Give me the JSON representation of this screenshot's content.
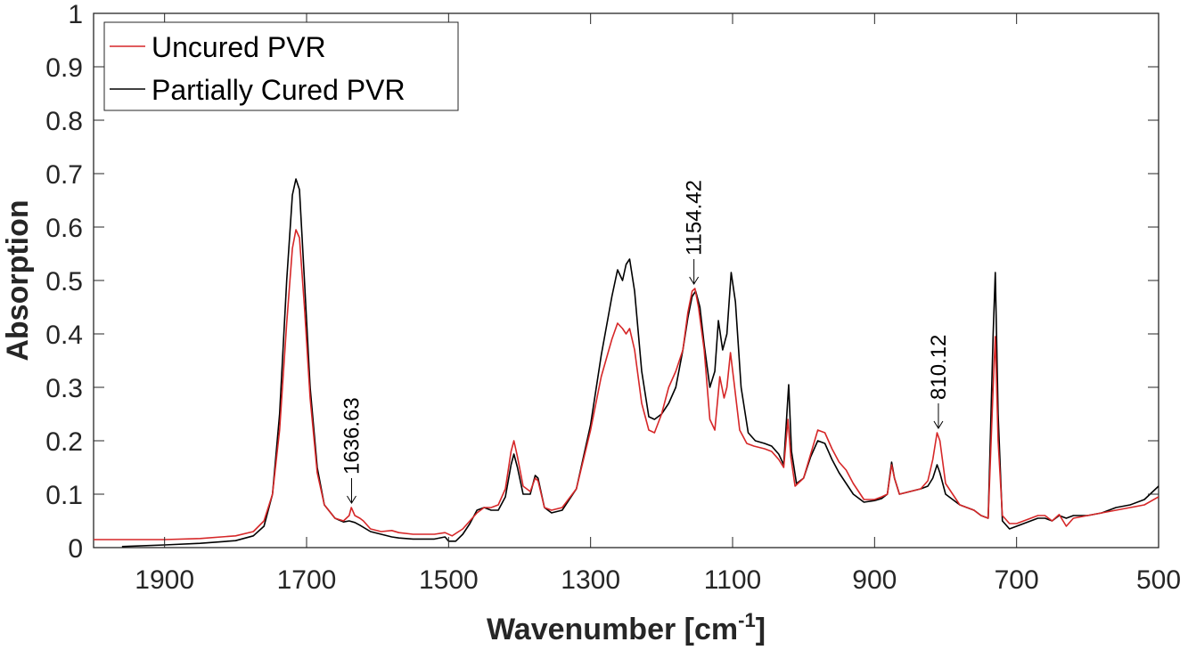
{
  "chart_data": {
    "type": "line",
    "xlabel": "Wavenumber [cm",
    "xlabel_superscript": "-1",
    "xlabel_suffix": "]",
    "ylabel": "Absorption",
    "xlim": [
      2000,
      500
    ],
    "x_reversed": true,
    "ylim": [
      0,
      1
    ],
    "xticks": [
      1900,
      1700,
      1500,
      1300,
      1100,
      900,
      700,
      500
    ],
    "xtick_labels": [
      "1900",
      "1700",
      "1500",
      "1300",
      "1100",
      "900",
      "700",
      "500"
    ],
    "yticks": [
      0,
      0.1,
      0.2,
      0.3,
      0.4,
      0.5,
      0.6,
      0.7,
      0.8,
      0.9,
      1
    ],
    "ytick_labels": [
      "0",
      "0.1",
      "0.2",
      "0.3",
      "0.4",
      "0.5",
      "0.6",
      "0.7",
      "0.8",
      "0.9",
      "1"
    ],
    "grid": false,
    "legend_position": "top-left",
    "series": [
      {
        "name": "Uncured PVR",
        "color": "#d62728",
        "points": [
          [
            2000,
            0.015
          ],
          [
            1900,
            0.015
          ],
          [
            1850,
            0.017
          ],
          [
            1800,
            0.022
          ],
          [
            1775,
            0.03
          ],
          [
            1760,
            0.05
          ],
          [
            1748,
            0.1
          ],
          [
            1738,
            0.22
          ],
          [
            1728,
            0.42
          ],
          [
            1720,
            0.56
          ],
          [
            1715,
            0.595
          ],
          [
            1710,
            0.58
          ],
          [
            1703,
            0.45
          ],
          [
            1695,
            0.28
          ],
          [
            1685,
            0.14
          ],
          [
            1675,
            0.08
          ],
          [
            1660,
            0.055
          ],
          [
            1648,
            0.05
          ],
          [
            1640,
            0.06
          ],
          [
            1637,
            0.075
          ],
          [
            1632,
            0.06
          ],
          [
            1625,
            0.055
          ],
          [
            1620,
            0.05
          ],
          [
            1610,
            0.035
          ],
          [
            1595,
            0.03
          ],
          [
            1580,
            0.032
          ],
          [
            1570,
            0.028
          ],
          [
            1550,
            0.025
          ],
          [
            1520,
            0.025
          ],
          [
            1505,
            0.028
          ],
          [
            1495,
            0.022
          ],
          [
            1480,
            0.035
          ],
          [
            1470,
            0.05
          ],
          [
            1460,
            0.065
          ],
          [
            1450,
            0.075
          ],
          [
            1440,
            0.075
          ],
          [
            1430,
            0.08
          ],
          [
            1420,
            0.11
          ],
          [
            1412,
            0.18
          ],
          [
            1408,
            0.2
          ],
          [
            1403,
            0.17
          ],
          [
            1395,
            0.115
          ],
          [
            1385,
            0.105
          ],
          [
            1378,
            0.13
          ],
          [
            1374,
            0.125
          ],
          [
            1365,
            0.075
          ],
          [
            1355,
            0.07
          ],
          [
            1340,
            0.075
          ],
          [
            1320,
            0.11
          ],
          [
            1300,
            0.22
          ],
          [
            1285,
            0.32
          ],
          [
            1270,
            0.39
          ],
          [
            1262,
            0.42
          ],
          [
            1255,
            0.41
          ],
          [
            1250,
            0.4
          ],
          [
            1245,
            0.41
          ],
          [
            1238,
            0.37
          ],
          [
            1228,
            0.27
          ],
          [
            1218,
            0.22
          ],
          [
            1210,
            0.215
          ],
          [
            1200,
            0.25
          ],
          [
            1190,
            0.3
          ],
          [
            1180,
            0.33
          ],
          [
            1170,
            0.37
          ],
          [
            1163,
            0.44
          ],
          [
            1157,
            0.48
          ],
          [
            1153,
            0.485
          ],
          [
            1148,
            0.45
          ],
          [
            1140,
            0.37
          ],
          [
            1132,
            0.24
          ],
          [
            1125,
            0.22
          ],
          [
            1118,
            0.32
          ],
          [
            1112,
            0.28
          ],
          [
            1108,
            0.3
          ],
          [
            1103,
            0.365
          ],
          [
            1098,
            0.31
          ],
          [
            1090,
            0.22
          ],
          [
            1080,
            0.195
          ],
          [
            1070,
            0.19
          ],
          [
            1055,
            0.185
          ],
          [
            1045,
            0.18
          ],
          [
            1035,
            0.165
          ],
          [
            1028,
            0.15
          ],
          [
            1022,
            0.24
          ],
          [
            1018,
            0.17
          ],
          [
            1012,
            0.115
          ],
          [
            1000,
            0.13
          ],
          [
            990,
            0.175
          ],
          [
            980,
            0.22
          ],
          [
            970,
            0.215
          ],
          [
            960,
            0.185
          ],
          [
            950,
            0.16
          ],
          [
            940,
            0.145
          ],
          [
            930,
            0.12
          ],
          [
            915,
            0.09
          ],
          [
            900,
            0.09
          ],
          [
            890,
            0.095
          ],
          [
            882,
            0.1
          ],
          [
            876,
            0.155
          ],
          [
            872,
            0.13
          ],
          [
            865,
            0.1
          ],
          [
            850,
            0.105
          ],
          [
            835,
            0.11
          ],
          [
            825,
            0.125
          ],
          [
            818,
            0.165
          ],
          [
            812,
            0.215
          ],
          [
            808,
            0.2
          ],
          [
            800,
            0.12
          ],
          [
            790,
            0.1
          ],
          [
            780,
            0.08
          ],
          [
            770,
            0.075
          ],
          [
            760,
            0.07
          ],
          [
            750,
            0.06
          ],
          [
            740,
            0.055
          ],
          [
            733,
            0.3
          ],
          [
            730,
            0.395
          ],
          [
            726,
            0.2
          ],
          [
            720,
            0.06
          ],
          [
            710,
            0.045
          ],
          [
            700,
            0.045
          ],
          [
            690,
            0.05
          ],
          [
            680,
            0.055
          ],
          [
            670,
            0.06
          ],
          [
            660,
            0.06
          ],
          [
            650,
            0.05
          ],
          [
            640,
            0.062
          ],
          [
            630,
            0.04
          ],
          [
            620,
            0.055
          ],
          [
            600,
            0.06
          ],
          [
            580,
            0.065
          ],
          [
            560,
            0.07
          ],
          [
            540,
            0.075
          ],
          [
            520,
            0.08
          ],
          [
            500,
            0.095
          ]
        ]
      },
      {
        "name": "Partially Cured PVR",
        "color": "#000000",
        "points": [
          [
            1960,
            0.002
          ],
          [
            1900,
            0.005
          ],
          [
            1850,
            0.008
          ],
          [
            1800,
            0.013
          ],
          [
            1775,
            0.022
          ],
          [
            1760,
            0.04
          ],
          [
            1748,
            0.1
          ],
          [
            1738,
            0.25
          ],
          [
            1728,
            0.5
          ],
          [
            1720,
            0.66
          ],
          [
            1715,
            0.69
          ],
          [
            1710,
            0.67
          ],
          [
            1703,
            0.5
          ],
          [
            1695,
            0.3
          ],
          [
            1685,
            0.15
          ],
          [
            1675,
            0.08
          ],
          [
            1660,
            0.055
          ],
          [
            1648,
            0.048
          ],
          [
            1640,
            0.05
          ],
          [
            1632,
            0.047
          ],
          [
            1625,
            0.042
          ],
          [
            1610,
            0.03
          ],
          [
            1595,
            0.025
          ],
          [
            1580,
            0.02
          ],
          [
            1570,
            0.018
          ],
          [
            1550,
            0.016
          ],
          [
            1520,
            0.016
          ],
          [
            1505,
            0.02
          ],
          [
            1500,
            0.012
          ],
          [
            1490,
            0.012
          ],
          [
            1480,
            0.025
          ],
          [
            1470,
            0.045
          ],
          [
            1460,
            0.07
          ],
          [
            1450,
            0.075
          ],
          [
            1440,
            0.07
          ],
          [
            1430,
            0.07
          ],
          [
            1420,
            0.095
          ],
          [
            1412,
            0.155
          ],
          [
            1408,
            0.175
          ],
          [
            1403,
            0.15
          ],
          [
            1395,
            0.1
          ],
          [
            1385,
            0.1
          ],
          [
            1378,
            0.135
          ],
          [
            1374,
            0.13
          ],
          [
            1365,
            0.075
          ],
          [
            1355,
            0.065
          ],
          [
            1340,
            0.07
          ],
          [
            1320,
            0.11
          ],
          [
            1300,
            0.23
          ],
          [
            1285,
            0.36
          ],
          [
            1270,
            0.47
          ],
          [
            1262,
            0.52
          ],
          [
            1255,
            0.5
          ],
          [
            1250,
            0.53
          ],
          [
            1245,
            0.54
          ],
          [
            1238,
            0.48
          ],
          [
            1228,
            0.33
          ],
          [
            1218,
            0.245
          ],
          [
            1210,
            0.24
          ],
          [
            1200,
            0.25
          ],
          [
            1190,
            0.27
          ],
          [
            1180,
            0.3
          ],
          [
            1170,
            0.37
          ],
          [
            1163,
            0.43
          ],
          [
            1157,
            0.47
          ],
          [
            1152,
            0.48
          ],
          [
            1146,
            0.45
          ],
          [
            1140,
            0.38
          ],
          [
            1132,
            0.3
          ],
          [
            1125,
            0.33
          ],
          [
            1120,
            0.425
          ],
          [
            1114,
            0.37
          ],
          [
            1108,
            0.4
          ],
          [
            1102,
            0.515
          ],
          [
            1096,
            0.46
          ],
          [
            1088,
            0.3
          ],
          [
            1078,
            0.215
          ],
          [
            1068,
            0.2
          ],
          [
            1055,
            0.195
          ],
          [
            1045,
            0.19
          ],
          [
            1035,
            0.175
          ],
          [
            1028,
            0.155
          ],
          [
            1021,
            0.305
          ],
          [
            1017,
            0.18
          ],
          [
            1010,
            0.12
          ],
          [
            1000,
            0.13
          ],
          [
            990,
            0.17
          ],
          [
            980,
            0.2
          ],
          [
            970,
            0.195
          ],
          [
            960,
            0.165
          ],
          [
            950,
            0.14
          ],
          [
            940,
            0.12
          ],
          [
            930,
            0.1
          ],
          [
            915,
            0.085
          ],
          [
            900,
            0.088
          ],
          [
            890,
            0.092
          ],
          [
            882,
            0.1
          ],
          [
            876,
            0.16
          ],
          [
            872,
            0.13
          ],
          [
            865,
            0.1
          ],
          [
            850,
            0.105
          ],
          [
            835,
            0.11
          ],
          [
            825,
            0.115
          ],
          [
            818,
            0.13
          ],
          [
            812,
            0.155
          ],
          [
            808,
            0.14
          ],
          [
            800,
            0.1
          ],
          [
            790,
            0.09
          ],
          [
            780,
            0.08
          ],
          [
            770,
            0.075
          ],
          [
            760,
            0.07
          ],
          [
            750,
            0.06
          ],
          [
            740,
            0.055
          ],
          [
            733,
            0.4
          ],
          [
            730,
            0.515
          ],
          [
            726,
            0.25
          ],
          [
            720,
            0.05
          ],
          [
            710,
            0.035
          ],
          [
            700,
            0.04
          ],
          [
            690,
            0.045
          ],
          [
            680,
            0.05
          ],
          [
            670,
            0.055
          ],
          [
            660,
            0.055
          ],
          [
            650,
            0.05
          ],
          [
            640,
            0.06
          ],
          [
            630,
            0.055
          ],
          [
            620,
            0.06
          ],
          [
            600,
            0.06
          ],
          [
            580,
            0.065
          ],
          [
            560,
            0.075
          ],
          [
            540,
            0.08
          ],
          [
            520,
            0.09
          ],
          [
            500,
            0.115
          ]
        ]
      }
    ],
    "annotations": [
      {
        "label": "1636.63",
        "x": 1636.63,
        "y": 0.075
      },
      {
        "label": "1154.42",
        "x": 1154.42,
        "y": 0.485
      },
      {
        "label": "810.12",
        "x": 810.12,
        "y": 0.215
      }
    ]
  }
}
